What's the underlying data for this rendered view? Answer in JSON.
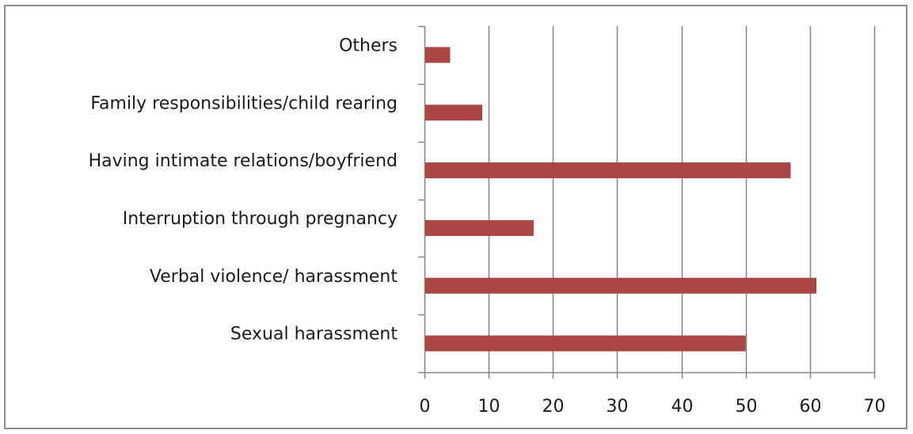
{
  "chart_data": {
    "type": "bar",
    "orientation": "horizontal",
    "title": "",
    "xlabel": "",
    "ylabel": "",
    "categories": [
      "Others",
      "Family responsibilities/child rearing",
      "Having intimate relations/boyfriend",
      "Interruption through pregnancy",
      "Verbal violence/ harassment",
      "Sexual harassment"
    ],
    "values": [
      4,
      9,
      57,
      17,
      61,
      50
    ],
    "xlim": [
      0,
      70
    ],
    "xticks": [
      "0",
      "10",
      "20",
      "30",
      "40",
      "50",
      "60",
      "70"
    ],
    "grid": "vertical",
    "legend": "none",
    "bar_color": "#aa4643",
    "grid_color": "#868686"
  }
}
